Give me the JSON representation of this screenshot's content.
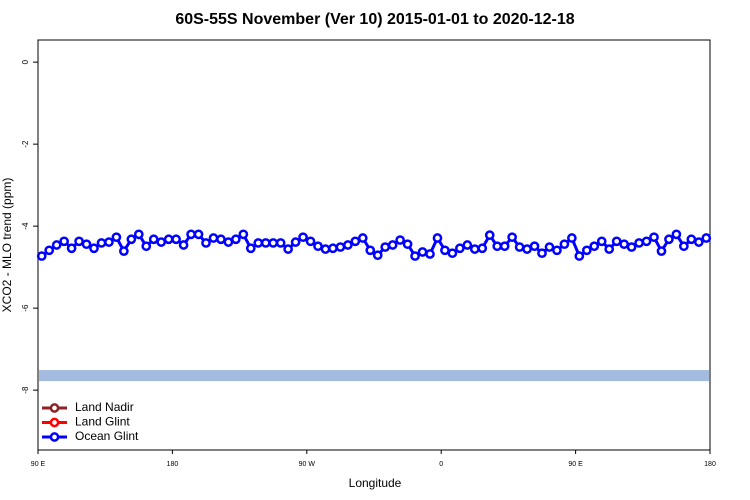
{
  "chart_data": {
    "type": "line",
    "title": "60S-55S November (Ver 10)   2015-01-01 to 2020-12-18",
    "x_label": "Longitude",
    "y_label": "XCO2 - MLO trend (ppm)",
    "xlim": [
      90,
      540
    ],
    "xticks": [
      {
        "value": 90,
        "label": "90 E"
      },
      {
        "value": 180,
        "label": "180"
      },
      {
        "value": 270,
        "label": "90 W"
      },
      {
        "value": 360,
        "label": "0"
      },
      {
        "value": 450,
        "label": "90 E"
      },
      {
        "value": 540,
        "label": "180"
      }
    ],
    "ylim": [
      -9.46,
      0.54
    ],
    "yticks": [
      0,
      -2,
      -4,
      -6,
      -8
    ],
    "legend": "bottom-left",
    "coverage_band": {
      "ylim": [
        -7.78,
        -7.51
      ],
      "color": "#a3bbdf"
    },
    "x": [
      92.5,
      97.5,
      102.5,
      107.5,
      112.5,
      117.5,
      122.5,
      127.5,
      132.5,
      137.5,
      142.5,
      147.5,
      152.5,
      157.5,
      162.5,
      167.5,
      172.5,
      177.5,
      182.5,
      187.5,
      192.5,
      197.5,
      202.5,
      207.5,
      212.5,
      217.5,
      222.5,
      227.5,
      232.5,
      237.5,
      242.5,
      247.5,
      252.5,
      257.5,
      262.5,
      267.5,
      272.5,
      277.5,
      282.5,
      287.5,
      292.5,
      297.5,
      302.5,
      307.5,
      312.5,
      317.5,
      322.5,
      327.5,
      332.5,
      337.5,
      342.5,
      347.5,
      352.5,
      357.5,
      362.5,
      367.5,
      372.5,
      377.5,
      382.5,
      387.5,
      392.5,
      397.5,
      402.5,
      407.5,
      412.5,
      417.5,
      422.5,
      427.5,
      432.5,
      437.5,
      442.5,
      447.5,
      452.5,
      457.5,
      462.5,
      467.5,
      472.5,
      477.5,
      482.5,
      487.5,
      492.5,
      497.5,
      502.5,
      507.5,
      512.5,
      517.5,
      522.5,
      527.5,
      532.5,
      537.5
    ],
    "series": [
      {
        "name": "Land Nadir",
        "color": "#8b2323"
      },
      {
        "name": "Land Glint",
        "color": "#ff0000"
      },
      {
        "name": "Ocean Glint",
        "color": "#0000ff",
        "values": [
          -4.73,
          -4.59,
          -4.46,
          -4.37,
          -4.54,
          -4.37,
          -4.44,
          -4.54,
          -4.41,
          -4.39,
          -4.27,
          -4.61,
          -4.32,
          -4.2,
          -4.49,
          -4.32,
          -4.39,
          -4.32,
          -4.32,
          -4.46,
          -4.2,
          -4.2,
          -4.41,
          -4.29,
          -4.32,
          -4.39,
          -4.32,
          -4.2,
          -4.54,
          -4.41,
          -4.41,
          -4.41,
          -4.41,
          -4.56,
          -4.39,
          -4.27,
          -4.37,
          -4.49,
          -4.56,
          -4.54,
          -4.51,
          -4.46,
          -4.37,
          -4.29,
          -4.59,
          -4.71,
          -4.51,
          -4.46,
          -4.34,
          -4.44,
          -4.73,
          -4.63,
          -4.68,
          -4.29,
          -4.59,
          -4.66,
          -4.54,
          -4.46,
          -4.56,
          -4.54,
          -4.22,
          -4.49,
          -4.49,
          -4.27,
          -4.51,
          -4.56,
          -4.49,
          -4.66,
          -4.51,
          -4.59,
          -4.44,
          -4.29,
          -4.73,
          -4.59,
          -4.49,
          -4.37,
          -4.56,
          -4.37,
          -4.44,
          -4.51,
          -4.41,
          -4.37,
          -4.27,
          -4.61,
          -4.32,
          -4.2,
          -4.49,
          -4.32,
          -4.39,
          -4.29
        ]
      }
    ]
  }
}
